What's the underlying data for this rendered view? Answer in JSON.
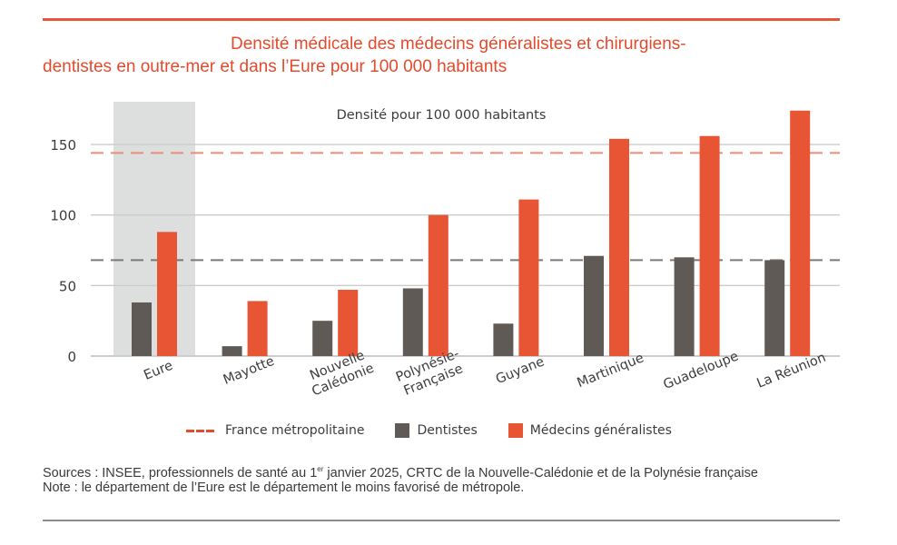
{
  "header": {
    "title_line1": "Densité médicale des médecins généralistes et chirurgiens-",
    "title_line2": "dentistes en outre-mer et dans l’Eure pour 100 000 habitants"
  },
  "colors": {
    "accent": "#e8553a",
    "dentistes": "#5f5a55",
    "medecins": "#e85535",
    "highlight_band": "#dcdfde",
    "ref_france_medecins": "#eb8c78",
    "ref_france_dentistes": "#7c7874",
    "gridline": "#cccccc"
  },
  "chart_data": {
    "type": "bar",
    "title": "Densité pour 100 000 habitants",
    "xlabel": "",
    "ylabel": "",
    "ylim": [
      0,
      180
    ],
    "yticks": [
      0,
      50,
      100,
      150
    ],
    "grid": true,
    "legend_position": "bottom",
    "categories": [
      "Eure",
      "Mayotte",
      "Nouvelle Calédonie",
      "Polynésie-Française",
      "Guyane",
      "Martinique",
      "Guadeloupe",
      "La Réunion"
    ],
    "category_lines": [
      [
        "Eure"
      ],
      [
        "Mayotte"
      ],
      [
        "Nouvelle",
        "Calédonie"
      ],
      [
        "Polynésie-",
        "Française"
      ],
      [
        "Guyane"
      ],
      [
        "Martinique"
      ],
      [
        "Guadeloupe"
      ],
      [
        "La Réunion"
      ]
    ],
    "highlighted_category": "Eure",
    "series": [
      {
        "name": "Dentistes",
        "values": [
          38,
          7,
          25,
          48,
          23,
          71,
          70,
          68
        ]
      },
      {
        "name": "Médecins généralistes",
        "values": [
          88,
          39,
          47,
          100,
          111,
          154,
          156,
          174
        ]
      }
    ],
    "reference_lines": [
      {
        "name": "France métropolitaine (médecins généralistes)",
        "value": 144,
        "style": "dashed"
      },
      {
        "name": "France métropolitaine (dentistes)",
        "value": 68,
        "style": "dashed"
      }
    ]
  },
  "legend": {
    "items": [
      {
        "label": "France métropolitaine",
        "kind": "dashed-line"
      },
      {
        "label": "Dentistes",
        "kind": "swatch"
      },
      {
        "label": "Médecins généralistes",
        "kind": "swatch"
      }
    ]
  },
  "footer": {
    "sources_prefix": "Sources : INSEE, professionnels de santé au 1",
    "sources_sup": "er",
    "sources_suffix": " janvier 2025, CRTC de la Nouvelle-Calédonie et de la Polynésie française",
    "note": "Note : le département de l’Eure est le département le moins favorisé de métropole."
  }
}
